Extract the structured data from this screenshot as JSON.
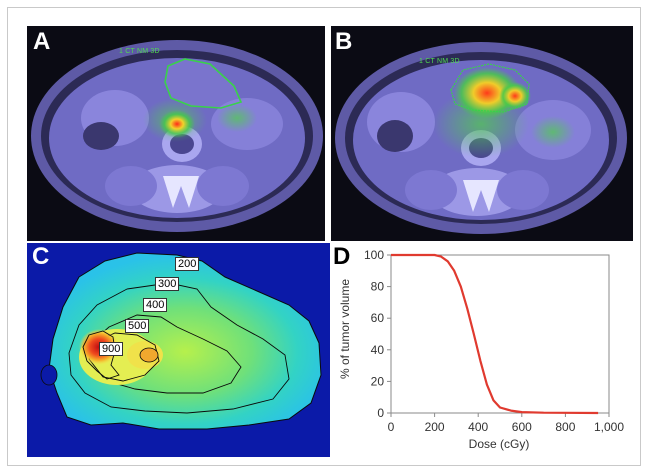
{
  "figure": {
    "panels": {
      "a": {
        "label": "A",
        "overlay_text": "1 CT NM 3D"
      },
      "b": {
        "label": "B",
        "overlay_text": "1 CT NM 3D"
      },
      "c": {
        "label": "C",
        "isodose_labels": [
          "200",
          "300",
          "400",
          "500",
          "900"
        ]
      },
      "d": {
        "label": "D"
      }
    },
    "colors": {
      "ct_background": "#0b0b14",
      "pet_tint": "#7b75d6",
      "contour_green": "#39d24a",
      "dvh_curve": "#e03a2f",
      "dose_map_background": "#0b1aa8"
    }
  },
  "chart_data": {
    "type": "line",
    "title": "",
    "xlabel": "Dose (cGy)",
    "ylabel": "% of tumor volume",
    "xlim": [
      0,
      1000
    ],
    "ylim": [
      0,
      100
    ],
    "xticks": [
      "0",
      "200",
      "400",
      "600",
      "800",
      "1,000"
    ],
    "yticks": [
      "0",
      "20",
      "40",
      "60",
      "80",
      "100"
    ],
    "grid": false,
    "legend": "none",
    "series": [
      {
        "x": [
          0,
          150,
          200,
          230,
          260,
          290,
          320,
          350,
          380,
          410,
          440,
          470,
          500,
          550,
          600,
          700,
          800,
          950
        ],
        "y": [
          100,
          100,
          100,
          99,
          96,
          90,
          80,
          66,
          50,
          33,
          18,
          8,
          3.5,
          1.5,
          0.6,
          0.2,
          0.1,
          0
        ]
      }
    ]
  }
}
